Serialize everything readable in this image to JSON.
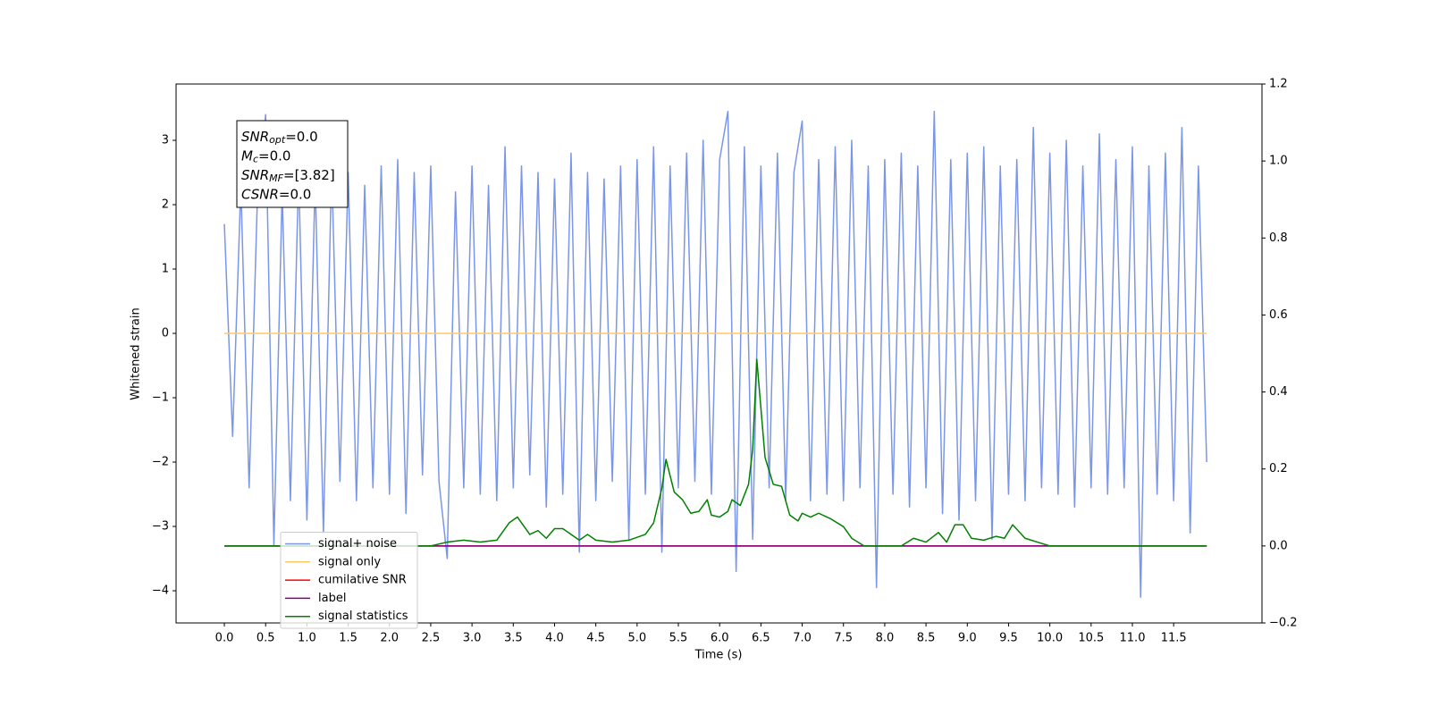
{
  "chart_data": {
    "type": "line",
    "xlabel": "Time (s)",
    "ylabel": "Whitened strain",
    "xlim": [
      -0.585,
      12.57
    ],
    "ylim": [
      -4.5,
      3.875
    ],
    "y2lim": [
      -0.2,
      1.2
    ],
    "xticks": [
      {
        "value": 0,
        "label": "0.0"
      },
      {
        "value": 0.5,
        "label": "0.5"
      },
      {
        "value": 1,
        "label": "1.0"
      },
      {
        "value": 1.5,
        "label": "1.5"
      },
      {
        "value": 2,
        "label": "2.0"
      },
      {
        "value": 2.5,
        "label": "2.5"
      },
      {
        "value": 3,
        "label": "3.0"
      },
      {
        "value": 3.5,
        "label": "3.5"
      },
      {
        "value": 4,
        "label": "4.0"
      },
      {
        "value": 4.5,
        "label": "4.5"
      },
      {
        "value": 5,
        "label": "5.0"
      },
      {
        "value": 5.5,
        "label": "5.5"
      },
      {
        "value": 6,
        "label": "6.0"
      },
      {
        "value": 6.5,
        "label": "6.5"
      },
      {
        "value": 7,
        "label": "7.0"
      },
      {
        "value": 7.5,
        "label": "7.5"
      },
      {
        "value": 8,
        "label": "8.0"
      },
      {
        "value": 8.5,
        "label": "8.5"
      },
      {
        "value": 9,
        "label": "9.0"
      },
      {
        "value": 9.5,
        "label": "9.5"
      },
      {
        "value": 10,
        "label": "10.0"
      },
      {
        "value": 10.5,
        "label": "10.5"
      },
      {
        "value": 11,
        "label": "11.0"
      },
      {
        "value": 11.5,
        "label": "11.5"
      }
    ],
    "yticks": [
      {
        "value": -4,
        "label": "−4"
      },
      {
        "value": -3,
        "label": "−3"
      },
      {
        "value": -2,
        "label": "−2"
      },
      {
        "value": -1,
        "label": "−1"
      },
      0,
      1,
      2,
      3
    ],
    "y2ticks": [
      {
        "value": -0.2,
        "label": "−0.2"
      },
      {
        "value": 0,
        "label": "0.0"
      },
      {
        "value": 0.2,
        "label": "0.2"
      },
      {
        "value": 0.4,
        "label": "0.4"
      },
      {
        "value": 0.6,
        "label": "0.6"
      },
      {
        "value": 0.8,
        "label": "0.8"
      },
      {
        "value": 1,
        "label": "1.0"
      },
      {
        "value": 1.2,
        "label": "1.2"
      }
    ],
    "legend": "lower left",
    "series": [
      {
        "name": "signal+ noise",
        "color": "#7b96e8",
        "axis": "y",
        "x": [
          0,
          0.1,
          0.2,
          0.3,
          0.4,
          0.5,
          0.6,
          0.7,
          0.8,
          0.9,
          1,
          1.1,
          1.2,
          1.3,
          1.4,
          1.5,
          1.6,
          1.7,
          1.8,
          1.9,
          2,
          2.1,
          2.2,
          2.3,
          2.4,
          2.5,
          2.6,
          2.7,
          2.8,
          2.9,
          3,
          3.1,
          3.2,
          3.3,
          3.4,
          3.5,
          3.6,
          3.7,
          3.8,
          3.9,
          4,
          4.1,
          4.2,
          4.3,
          4.4,
          4.5,
          4.6,
          4.7,
          4.8,
          4.9,
          5,
          5.1,
          5.2,
          5.3,
          5.4,
          5.5,
          5.6,
          5.7,
          5.8,
          5.9,
          6,
          6.1,
          6.2,
          6.3,
          6.4,
          6.5,
          6.6,
          6.7,
          6.8,
          6.9,
          7,
          7.1,
          7.2,
          7.3,
          7.4,
          7.5,
          7.6,
          7.7,
          7.8,
          7.9,
          8,
          8.1,
          8.2,
          8.3,
          8.4,
          8.5,
          8.6,
          8.7,
          8.8,
          8.9,
          9,
          9.1,
          9.2,
          9.3,
          9.4,
          9.5,
          9.6,
          9.7,
          9.8,
          9.9,
          10,
          10.1,
          10.2,
          10.3,
          10.4,
          10.5,
          10.6,
          10.7,
          10.8,
          10.9,
          11,
          11.1,
          11.2,
          11.3,
          11.4,
          11.5,
          11.6,
          11.7,
          11.8,
          11.9
        ],
        "values": [
          1.7,
          -1.6,
          2.3,
          -2.4,
          2.1,
          3.4,
          -3.3,
          2.2,
          -2.6,
          2.5,
          -2.9,
          2.4,
          -3.1,
          2.6,
          -2.3,
          2.5,
          -2.6,
          2.3,
          -2.4,
          2.6,
          -2.5,
          2.7,
          -2.8,
          2.5,
          -2.2,
          2.6,
          -2.3,
          -3.5,
          2.2,
          -2.4,
          2.6,
          -2.5,
          2.3,
          -2.6,
          2.9,
          -2.4,
          2.6,
          -2.2,
          2.5,
          -2.7,
          2.4,
          -2.5,
          2.8,
          -3.4,
          2.5,
          -2.6,
          2.4,
          -2.3,
          2.6,
          -3.2,
          2.7,
          -2.5,
          2.9,
          -3.4,
          2.6,
          -2.4,
          2.8,
          -2.3,
          3.0,
          -2.5,
          2.7,
          3.45,
          -3.7,
          2.9,
          -3.2,
          2.6,
          -2.4,
          2.8,
          -2.6,
          2.5,
          3.3,
          -2.6,
          2.7,
          -2.5,
          2.9,
          -2.6,
          3.0,
          -2.4,
          2.6,
          -3.95,
          2.7,
          -2.5,
          2.8,
          -2.7,
          2.6,
          -2.4,
          3.45,
          -2.8,
          2.7,
          -2.9,
          2.8,
          -2.6,
          2.9,
          -3.2,
          2.6,
          -2.5,
          2.7,
          -2.6,
          3.2,
          -2.4,
          2.8,
          -2.5,
          3.0,
          -2.7,
          2.6,
          -2.4,
          3.1,
          -2.5,
          2.7,
          -2.4,
          2.9,
          -4.1,
          2.6,
          -2.5,
          2.8,
          -2.6,
          3.2,
          -3.1,
          2.6,
          -2.0
        ]
      },
      {
        "name": "signal only",
        "color": "#ffc966",
        "axis": "y",
        "x": [
          0,
          11.9
        ],
        "values": [
          0,
          0
        ]
      },
      {
        "name": "cumilative SNR",
        "color": "#ff0000",
        "axis": "y2",
        "x": [
          0,
          11.9
        ],
        "values": [
          0,
          0
        ]
      },
      {
        "name": "label",
        "color": "#800080",
        "axis": "y2",
        "x": [
          0,
          11.9
        ],
        "values": [
          0,
          0
        ]
      },
      {
        "name": "signal statistics",
        "color": "#008000",
        "axis": "y2",
        "x": [
          0,
          2.5,
          2.7,
          2.9,
          3.1,
          3.3,
          3.45,
          3.55,
          3.7,
          3.8,
          3.9,
          4.0,
          4.1,
          4.3,
          4.4,
          4.5,
          4.7,
          4.9,
          5.1,
          5.2,
          5.3,
          5.35,
          5.45,
          5.55,
          5.65,
          5.75,
          5.85,
          5.9,
          6.0,
          6.1,
          6.15,
          6.25,
          6.35,
          6.4,
          6.45,
          6.55,
          6.65,
          6.75,
          6.85,
          6.95,
          7.0,
          7.1,
          7.2,
          7.35,
          7.5,
          7.6,
          7.75,
          8.0,
          8.2,
          8.35,
          8.5,
          8.65,
          8.75,
          8.85,
          8.95,
          9.05,
          9.2,
          9.35,
          9.45,
          9.55,
          9.7,
          9.85,
          10.0,
          11.9
        ],
        "values": [
          0,
          0,
          0.01,
          0.015,
          0.01,
          0.015,
          0.06,
          0.075,
          0.03,
          0.04,
          0.02,
          0.045,
          0.045,
          0.015,
          0.03,
          0.015,
          0.01,
          0.015,
          0.03,
          0.06,
          0.15,
          0.225,
          0.14,
          0.12,
          0.085,
          0.09,
          0.12,
          0.08,
          0.075,
          0.09,
          0.12,
          0.105,
          0.16,
          0.25,
          0.485,
          0.23,
          0.16,
          0.155,
          0.08,
          0.065,
          0.085,
          0.075,
          0.085,
          0.07,
          0.05,
          0.02,
          0,
          0,
          0,
          0.02,
          0.01,
          0.035,
          0.01,
          0.055,
          0.055,
          0.02,
          0.015,
          0.025,
          0.02,
          0.055,
          0.02,
          0.01,
          0,
          0
        ]
      }
    ],
    "annotations": [
      {
        "symbol": "SNR",
        "sub": "opt",
        "text": "=0.0"
      },
      {
        "symbol": "M",
        "sub": "c",
        "text": "=0.0"
      },
      {
        "symbol": "SNR",
        "sub": "MF",
        "text": "=[3.82]"
      },
      {
        "symbol": "CSNR",
        "sub": null,
        "text": "=0.0"
      }
    ]
  }
}
